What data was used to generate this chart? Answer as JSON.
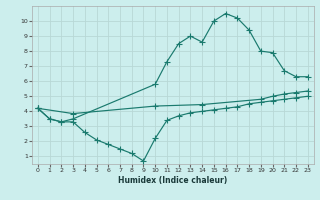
{
  "xlabel": "Humidex (Indice chaleur)",
  "bg_color": "#cceeed",
  "grid_color": "#b8d8d6",
  "line_color": "#1a7a6e",
  "xlim": [
    -0.5,
    23.5
  ],
  "ylim": [
    0.5,
    11.0
  ],
  "xticks": [
    0,
    1,
    2,
    3,
    4,
    5,
    6,
    7,
    8,
    9,
    10,
    11,
    12,
    13,
    14,
    15,
    16,
    17,
    18,
    19,
    20,
    21,
    22,
    23
  ],
  "yticks": [
    1,
    2,
    3,
    4,
    5,
    6,
    7,
    8,
    9,
    10
  ],
  "line1_x": [
    0,
    1,
    2,
    3,
    10,
    11,
    12,
    13,
    14,
    15,
    16,
    17,
    18,
    19,
    20,
    21,
    22,
    23
  ],
  "line1_y": [
    4.2,
    3.5,
    3.3,
    3.5,
    5.8,
    7.3,
    8.5,
    9.0,
    8.6,
    10.0,
    10.5,
    10.2,
    9.4,
    8.0,
    7.9,
    6.7,
    6.3,
    6.3
  ],
  "line2_x": [
    0,
    3,
    10,
    14,
    19,
    20,
    21,
    22,
    23
  ],
  "line2_y": [
    4.2,
    3.85,
    4.35,
    4.45,
    4.8,
    5.0,
    5.15,
    5.25,
    5.35
  ],
  "line3_x": [
    0,
    1,
    2,
    3,
    4,
    5,
    6,
    7,
    8,
    9,
    10,
    11,
    12,
    13,
    14,
    15,
    16,
    17,
    18,
    19,
    20,
    21,
    22,
    23
  ],
  "line3_y": [
    4.2,
    3.5,
    3.3,
    3.3,
    2.6,
    2.1,
    1.8,
    1.5,
    1.2,
    0.7,
    2.2,
    3.4,
    3.7,
    3.9,
    4.0,
    4.1,
    4.2,
    4.3,
    4.5,
    4.6,
    4.7,
    4.8,
    4.9,
    5.0
  ]
}
